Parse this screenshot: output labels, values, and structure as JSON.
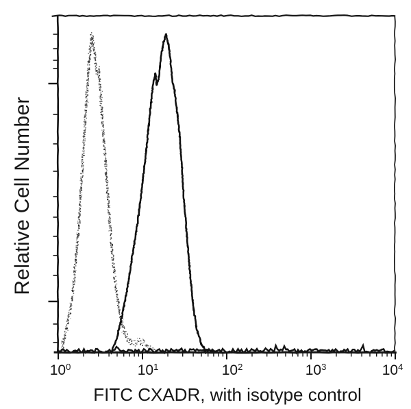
{
  "figure": {
    "y_axis_label": "Relative Cell Number",
    "x_axis_label": "FITC CXADR, with isotype control",
    "x_ticks": [
      {
        "base": "10",
        "exp": "0"
      },
      {
        "base": "10",
        "exp": "1"
      },
      {
        "base": "10",
        "exp": "2"
      },
      {
        "base": "10",
        "exp": "3"
      },
      {
        "base": "10",
        "exp": "4"
      }
    ],
    "background_color": "#ffffff",
    "ink_color": "#141414"
  },
  "chart_data": {
    "type": "line",
    "subtype": "flow-cytometry-overlay-histogram",
    "title": "",
    "xlabel": "FITC CXADR, with isotype control",
    "ylabel": "Relative Cell Number",
    "x_scale": "log10",
    "x_range": [
      1,
      10000
    ],
    "x_tick_values": [
      1,
      10,
      100,
      1000,
      10000
    ],
    "y_units": "percent_of_plot_height",
    "y_tick_labels_shown": false,
    "grid": false,
    "legend_position": "none",
    "series": [
      {
        "name": "isotype control",
        "style": "stippled-dotted",
        "color": "#1e1e1e",
        "peak_x": 2.5,
        "peak_height_pct": 94,
        "points": [
          [
            1.05,
            0
          ],
          [
            1.15,
            3
          ],
          [
            1.3,
            9
          ],
          [
            1.45,
            16
          ],
          [
            1.6,
            26
          ],
          [
            1.75,
            38
          ],
          [
            1.9,
            52
          ],
          [
            2.05,
            65
          ],
          [
            2.2,
            78
          ],
          [
            2.35,
            88
          ],
          [
            2.5,
            94
          ],
          [
            2.7,
            89
          ],
          [
            2.85,
            83
          ],
          [
            3.0,
            84
          ],
          [
            3.2,
            76
          ],
          [
            3.4,
            66
          ],
          [
            3.7,
            54
          ],
          [
            4.0,
            42
          ],
          [
            4.3,
            32
          ],
          [
            4.7,
            22
          ],
          [
            5.2,
            14
          ],
          [
            5.8,
            8
          ],
          [
            6.6,
            4.5
          ],
          [
            7.6,
            2.5
          ],
          [
            9.0,
            3.5
          ],
          [
            10.5,
            3
          ],
          [
            12.0,
            1.5
          ],
          [
            14.0,
            0.5
          ],
          [
            16.0,
            0
          ]
        ]
      },
      {
        "name": "FITC CXADR",
        "style": "solid",
        "color": "#101010",
        "peak_x": 19,
        "peak_height_pct": 94.5,
        "points": [
          [
            4.2,
            0
          ],
          [
            4.9,
            4
          ],
          [
            5.6,
            10
          ],
          [
            6.5,
            18
          ],
          [
            7.5,
            28
          ],
          [
            8.7,
            38
          ],
          [
            10.0,
            50
          ],
          [
            11.3,
            62
          ],
          [
            12.4,
            72
          ],
          [
            13.3,
            79
          ],
          [
            14.2,
            83
          ],
          [
            14.8,
            79
          ],
          [
            15.5,
            81
          ],
          [
            16.5,
            87
          ],
          [
            17.8,
            92
          ],
          [
            19.0,
            94.5
          ],
          [
            20.5,
            91
          ],
          [
            21.8,
            85
          ],
          [
            22.8,
            80
          ],
          [
            24.0,
            78
          ],
          [
            25.5,
            72
          ],
          [
            27.0,
            67
          ],
          [
            29.0,
            57
          ],
          [
            31.0,
            46
          ],
          [
            33.5,
            35
          ],
          [
            36.5,
            24
          ],
          [
            40.0,
            14
          ],
          [
            44.0,
            7
          ],
          [
            50.0,
            2.5
          ],
          [
            57.0,
            0.8
          ],
          [
            70.0,
            0.3
          ]
        ]
      }
    ],
    "baseline_noise": {
      "belongs_to_series": "FITC CXADR",
      "x_range": [
        1,
        10000
      ],
      "height_pct_max": 1.5
    }
  }
}
